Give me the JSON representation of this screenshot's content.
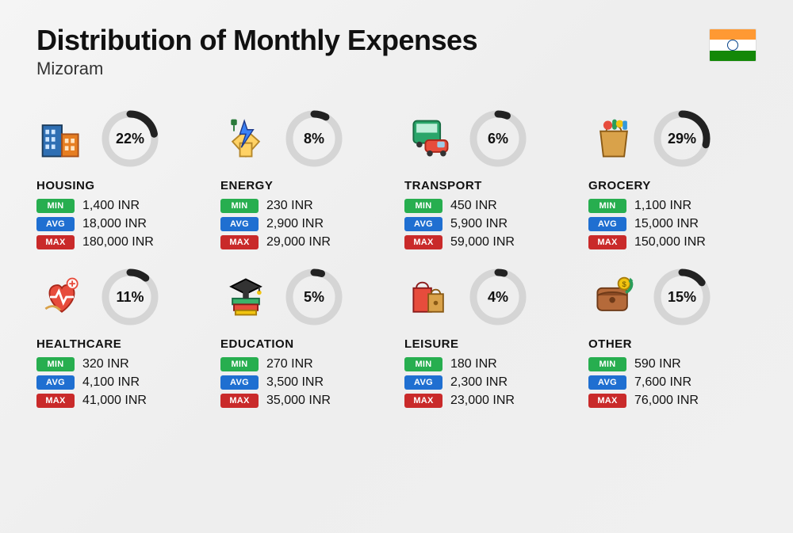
{
  "title": "Distribution of Monthly Expenses",
  "subtitle": "Mizoram",
  "flag": {
    "top": "#ff9933",
    "mid": "#ffffff",
    "bot": "#138808",
    "chakra": "#054187"
  },
  "currency_suffix": " INR",
  "labels": {
    "min": "MIN",
    "avg": "AVG",
    "max": "MAX"
  },
  "donut": {
    "radius": 31,
    "stroke_width": 9,
    "bg_color": "#d5d5d5",
    "fg_color": "#222222",
    "label_fontsize": 18,
    "label_fontweight": 800
  },
  "pill_colors": {
    "min": "#27ae4f",
    "avg": "#1f6fd1",
    "max": "#c92a2a"
  },
  "categories": [
    {
      "key": "housing",
      "name": "HOUSING",
      "percent": 22,
      "min": "1,400",
      "avg": "18,000",
      "max": "180,000",
      "icon": "housing"
    },
    {
      "key": "energy",
      "name": "ENERGY",
      "percent": 8,
      "min": "230",
      "avg": "2,900",
      "max": "29,000",
      "icon": "energy"
    },
    {
      "key": "transport",
      "name": "TRANSPORT",
      "percent": 6,
      "min": "450",
      "avg": "5,900",
      "max": "59,000",
      "icon": "transport"
    },
    {
      "key": "grocery",
      "name": "GROCERY",
      "percent": 29,
      "min": "1,100",
      "avg": "15,000",
      "max": "150,000",
      "icon": "grocery"
    },
    {
      "key": "healthcare",
      "name": "HEALTHCARE",
      "percent": 11,
      "min": "320",
      "avg": "4,100",
      "max": "41,000",
      "icon": "healthcare"
    },
    {
      "key": "education",
      "name": "EDUCATION",
      "percent": 5,
      "min": "270",
      "avg": "3,500",
      "max": "35,000",
      "icon": "education"
    },
    {
      "key": "leisure",
      "name": "LEISURE",
      "percent": 4,
      "min": "180",
      "avg": "2,300",
      "max": "23,000",
      "icon": "leisure"
    },
    {
      "key": "other",
      "name": "OTHER",
      "percent": 15,
      "min": "590",
      "avg": "7,600",
      "max": "76,000",
      "icon": "other"
    }
  ]
}
